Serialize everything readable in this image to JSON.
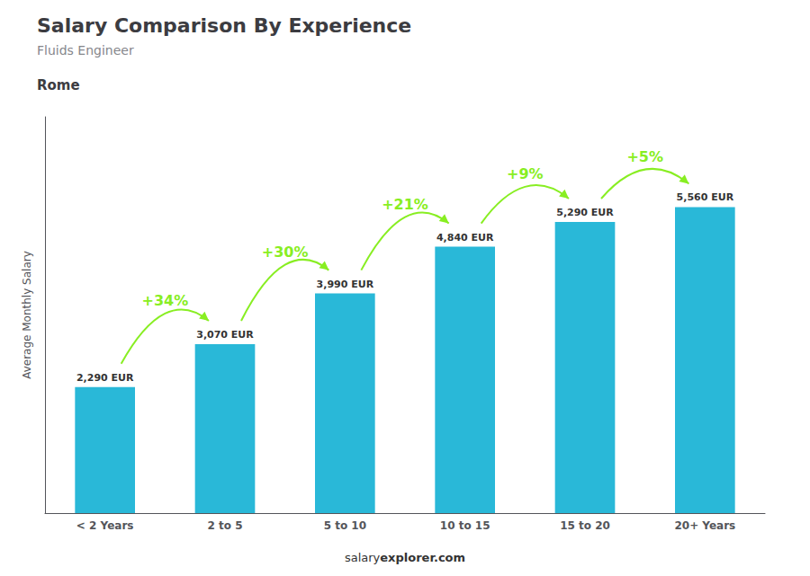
{
  "chart_data": {
    "type": "bar",
    "title": "Salary Comparison By Experience",
    "subtitle": "Fluids Engineer",
    "city": "Rome",
    "ylabel": "Average Monthly Salary",
    "categories": [
      "< 2 Years",
      "2 to 5",
      "5 to 10",
      "10 to 15",
      "15 to 20",
      "20+ Years"
    ],
    "values": [
      2290,
      3070,
      3990,
      4840,
      5290,
      5560
    ],
    "value_labels": [
      "2,290 EUR",
      "3,070 EUR",
      "3,990 EUR",
      "4,840 EUR",
      "5,290 EUR",
      "5,560 EUR"
    ],
    "data_labels": true,
    "color": "#29b8d8",
    "ylim": [
      0,
      7200
    ],
    "tick_labels": "x",
    "grid": false,
    "annotations": [
      {
        "text": "+34%",
        "from": "< 2 Years",
        "to": "2 to 5",
        "color": "#88ee22"
      },
      {
        "text": "+30%",
        "from": "2 to 5",
        "to": "5 to 10",
        "color": "#88ee22"
      },
      {
        "text": "+21%",
        "from": "5 to 10",
        "to": "10 to 15",
        "color": "#88ee22"
      },
      {
        "text": "+9%",
        "from": "10 to 15",
        "to": "15 to 20",
        "color": "#88ee22"
      },
      {
        "text": "+5%",
        "from": "15 to 20",
        "to": "20+ Years",
        "color": "#88ee22"
      }
    ],
    "footer": [
      "salary",
      "explorer.com"
    ]
  }
}
